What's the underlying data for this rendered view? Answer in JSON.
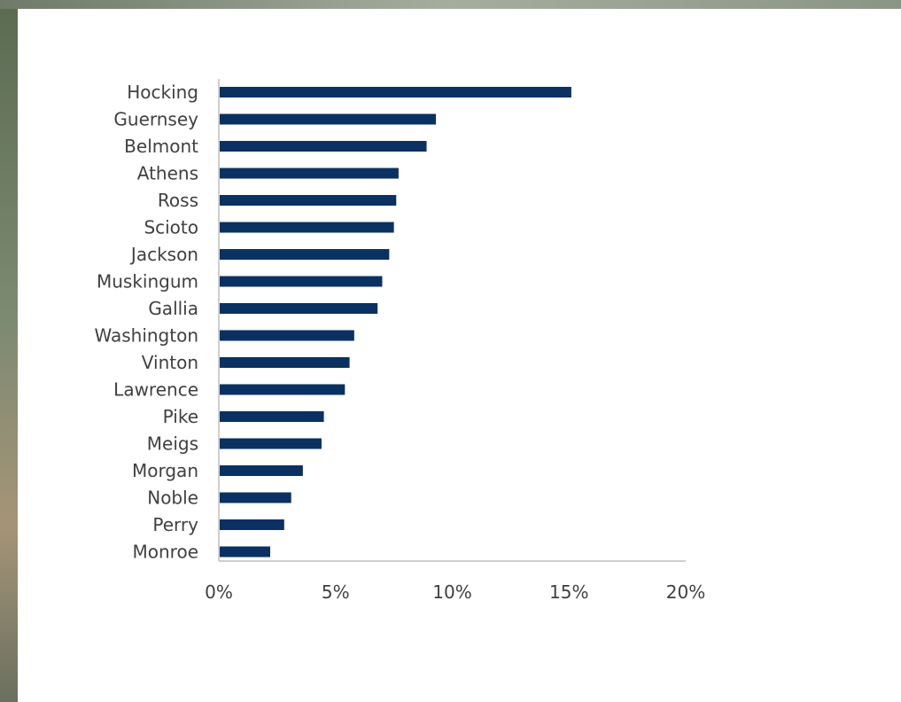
{
  "colors": {
    "bar": "#0a3161",
    "axis": "#bfbfbf",
    "text": "#404040",
    "panel": "#ffffff"
  },
  "chart_data": {
    "type": "bar",
    "orientation": "horizontal",
    "categories": [
      "Hocking",
      "Guernsey",
      "Belmont",
      "Athens",
      "Ross",
      "Scioto",
      "Jackson",
      "Muskingum",
      "Gallia",
      "Washington",
      "Vinton",
      "Lawrence",
      "Pike",
      "Meigs",
      "Morgan",
      "Noble",
      "Perry",
      "Monroe"
    ],
    "values": [
      15.1,
      9.3,
      8.9,
      7.7,
      7.6,
      7.5,
      7.3,
      7.0,
      6.8,
      5.8,
      5.6,
      5.4,
      4.5,
      4.4,
      3.6,
      3.1,
      2.8,
      2.2
    ],
    "xlim": [
      0,
      20
    ],
    "x_ticks": [
      0,
      5,
      10,
      15,
      20
    ],
    "x_tick_labels": [
      "0%",
      "5%",
      "10%",
      "15%",
      "20%"
    ],
    "grid": false,
    "legend": "none",
    "title": "",
    "xlabel": "",
    "ylabel": ""
  }
}
